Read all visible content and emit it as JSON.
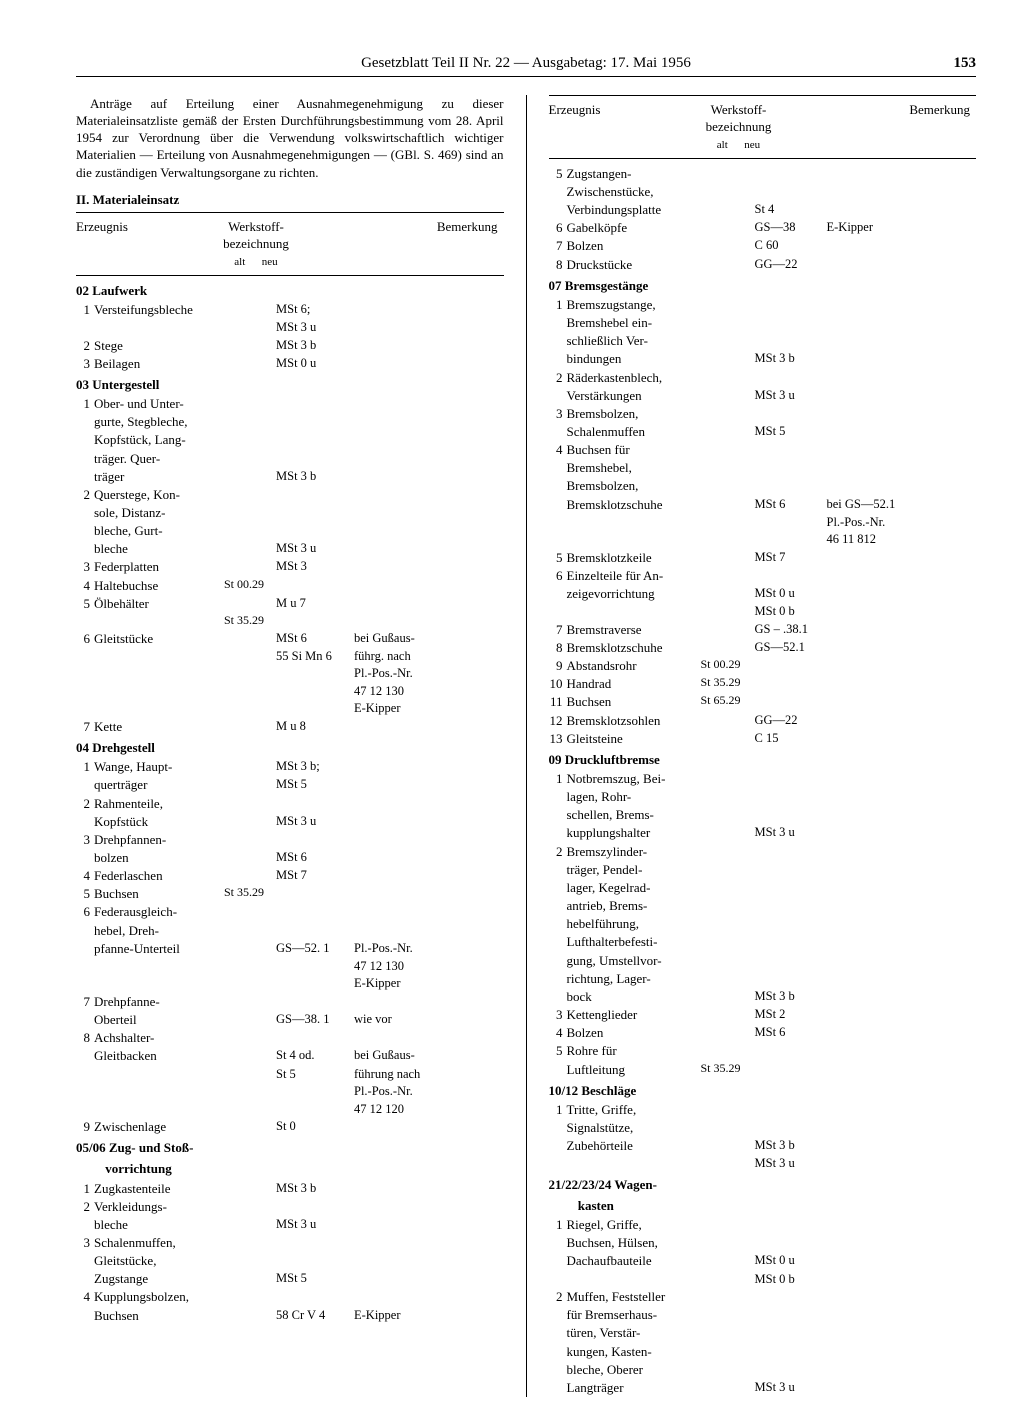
{
  "header": {
    "title": "Gesetzblatt Teil II Nr. 22 — Ausgabetag: 17. Mai 1956",
    "page": "153"
  },
  "intro": "Anträge auf Erteilung einer Ausnahmegenehmigung zu dieser Materialeinsatzliste gemäß der Ersten Durchführungsbestimmung vom 28. April 1954 zur Verordnung über die Verwendung volkswirtschaftlich wichtiger Materialien — Erteilung von Ausnahmegenehmigungen — (GBl. S. 469) sind an die zuständigen Verwaltungsorgane zu richten.",
  "section2": "II. Materialeinsatz",
  "table_header": {
    "c1": "Erzeugnis",
    "c2_top": "Werkstoff-",
    "c2_bot": "bezeichnung",
    "c2_sub": "alt      neu",
    "c3": "Bemerkung"
  },
  "left": [
    {
      "type": "grp",
      "text": "02  Laufwerk"
    },
    {
      "n": "1",
      "p": "Versteifungsbleche",
      "neu": "MSt 6;"
    },
    {
      "p": "",
      "neu": "MSt 3 u"
    },
    {
      "n": "2",
      "p": "Stege",
      "neu": "MSt 3 b"
    },
    {
      "n": "3",
      "p": "Beilagen",
      "neu": "MSt 0 u"
    },
    {
      "type": "grp",
      "text": "03  Untergestell"
    },
    {
      "n": "1",
      "p": "Ober- und Unter-"
    },
    {
      "p": "gurte, Stegbleche,"
    },
    {
      "p": "Kopfstück, Lang-"
    },
    {
      "p": "träger. Quer-"
    },
    {
      "p": "träger",
      "neu": "MSt 3 b"
    },
    {
      "n": "2",
      "p": "Querstege, Kon-"
    },
    {
      "p": "sole, Distanz-"
    },
    {
      "p": "bleche, Gurt-"
    },
    {
      "p": "bleche",
      "neu": "MSt 3 u"
    },
    {
      "n": "3",
      "p": "Federplatten",
      "neu": "MSt 3"
    },
    {
      "n": "4",
      "p": "Haltebuchse",
      "alt": "St 00.29"
    },
    {
      "n": "5",
      "p": "Ölbehälter",
      "neu": "M u 7"
    },
    {
      "p": "",
      "alt": "St 35.29"
    },
    {
      "n": "6",
      "p": "Gleitstücke",
      "neu": "MSt 6",
      "rem": "bei Gußaus-"
    },
    {
      "p": "",
      "neu": "55 Si Mn 6",
      "rem": "führg. nach"
    },
    {
      "p": "",
      "rem": "Pl.-Pos.-Nr."
    },
    {
      "p": "",
      "rem": "47 12 130"
    },
    {
      "p": "",
      "rem": "E-Kipper"
    },
    {
      "n": "7",
      "p": "Kette",
      "neu": "M u 8"
    },
    {
      "type": "grp",
      "text": "04  Drehgestell"
    },
    {
      "n": "1",
      "p": "Wange, Haupt-",
      "neu": "MSt 3 b;"
    },
    {
      "p": "querträger",
      "neu": "MSt 5"
    },
    {
      "n": "2",
      "p": "Rahmenteile,"
    },
    {
      "p": "Kopfstück",
      "neu": "MSt 3 u"
    },
    {
      "n": "3",
      "p": "Drehpfannen-"
    },
    {
      "p": "bolzen",
      "neu": "MSt 6"
    },
    {
      "n": "4",
      "p": "Federlaschen",
      "neu": "MSt 7"
    },
    {
      "n": "5",
      "p": "Buchsen",
      "alt": "St 35.29"
    },
    {
      "n": "6",
      "p": "Federausgleich-"
    },
    {
      "p": "hebel, Dreh-"
    },
    {
      "p": "pfanne-Unterteil",
      "neu": "GS—52. 1",
      "rem": "Pl.-Pos.-Nr."
    },
    {
      "p": "",
      "rem": "47 12 130"
    },
    {
      "p": "",
      "rem": "E-Kipper"
    },
    {
      "n": "7",
      "p": "Drehpfanne-"
    },
    {
      "p": "Oberteil",
      "neu": "GS—38. 1",
      "rem": "wie  vor"
    },
    {
      "n": "8",
      "p": "Achshalter-"
    },
    {
      "p": "Gleitbacken",
      "neu": "St 4 od.",
      "rem": "bei Gußaus-"
    },
    {
      "p": "",
      "neu": "St 5",
      "rem": "führung nach"
    },
    {
      "p": "",
      "rem": "Pl.-Pos.-Nr."
    },
    {
      "p": "",
      "rem": "47 12 120"
    },
    {
      "n": "9",
      "p": "Zwischenlage",
      "neu": "St 0"
    },
    {
      "type": "grp",
      "text": "05/06  Zug- und Stoß-"
    },
    {
      "type": "grp",
      "text": "         vorrichtung"
    },
    {
      "n": "1",
      "p": "Zugkastenteile",
      "neu": "MSt 3 b"
    },
    {
      "n": "2",
      "p": "Verkleidungs-"
    },
    {
      "p": "bleche",
      "neu": "MSt 3 u"
    },
    {
      "n": "3",
      "p": "Schalenmuffen,"
    },
    {
      "p": "Gleitstücke,"
    },
    {
      "p": "Zugstange",
      "neu": "MSt 5"
    },
    {
      "n": "4",
      "p": "Kupplungsbolzen,"
    },
    {
      "p": "Buchsen",
      "neu": "58 Cr V 4",
      "rem": "E-Kipper"
    }
  ],
  "right": [
    {
      "n": "5",
      "p": "Zugstangen-"
    },
    {
      "p": "Zwischenstücke,"
    },
    {
      "p": "Verbindungsplatte",
      "neu": "St 4"
    },
    {
      "n": "6",
      "p": "Gabelköpfe",
      "neu": "GS—38",
      "rem": "E-Kipper"
    },
    {
      "n": "7",
      "p": "Bolzen",
      "neu": "C 60"
    },
    {
      "n": "8",
      "p": "Druckstücke",
      "neu": "GG—22"
    },
    {
      "type": "grp",
      "text": "07  Bremsgestänge"
    },
    {
      "n": "1",
      "p": "Bremszugstange,"
    },
    {
      "p": "Bremshebel ein-"
    },
    {
      "p": "schließlich Ver-"
    },
    {
      "p": "bindungen",
      "neu": "MSt 3 b"
    },
    {
      "n": "2",
      "p": "Räderkastenblech,"
    },
    {
      "p": "Verstärkungen",
      "neu": "MSt 3 u"
    },
    {
      "n": "3",
      "p": "Bremsbolzen,"
    },
    {
      "p": "Schalenmuffen",
      "neu": "MSt 5"
    },
    {
      "n": "4",
      "p": "Buchsen für"
    },
    {
      "p": "Bremshebel,"
    },
    {
      "p": "Bremsbolzen,"
    },
    {
      "p": "Bremsklotzschuhe",
      "neu": "MSt 6",
      "rem": "bei GS—52.1"
    },
    {
      "p": "",
      "rem": "Pl.-Pos.-Nr."
    },
    {
      "p": "",
      "rem": "46 11 812"
    },
    {
      "n": "5",
      "p": "Bremsklotzkeile",
      "neu": "MSt 7"
    },
    {
      "n": "6",
      "p": "Einzelteile für An-"
    },
    {
      "p": "zeigevorrichtung",
      "neu": "MSt 0 u"
    },
    {
      "p": "",
      "neu": "MSt 0 b"
    },
    {
      "n": "7",
      "p": "Bremstraverse",
      "neu": "GS – .38.1"
    },
    {
      "n": "8",
      "p": "Bremsklotzschuhe",
      "neu": "GS—52.1"
    },
    {
      "n": "9",
      "p": "Abstandsrohr",
      "alt": "St 00.29"
    },
    {
      "n": "10",
      "p": "Handrad",
      "alt": "St 35.29"
    },
    {
      "n": "11",
      "p": "Buchsen",
      "alt": "St 65.29"
    },
    {
      "n": "12",
      "p": "Bremsklotzsohlen",
      "neu": "GG—22"
    },
    {
      "n": "13",
      "p": "Gleitsteine",
      "neu": "C 15"
    },
    {
      "type": "grp",
      "text": "09  Druckluftbremse"
    },
    {
      "n": "1",
      "p": "Notbremszug, Bei-"
    },
    {
      "p": "lagen, Rohr-"
    },
    {
      "p": "schellen, Brems-"
    },
    {
      "p": "kupplungshalter",
      "neu": "MSt 3 u"
    },
    {
      "n": "2",
      "p": "Bremszylinder-"
    },
    {
      "p": "träger, Pendel-"
    },
    {
      "p": "lager, Kegelrad-"
    },
    {
      "p": "antrieb, Brems-"
    },
    {
      "p": "hebelführung,"
    },
    {
      "p": "Lufthalterbefesti-"
    },
    {
      "p": "gung, Umstellvor-"
    },
    {
      "p": "richtung, Lager-"
    },
    {
      "p": "bock",
      "neu": "MSt 3 b"
    },
    {
      "n": "3",
      "p": "Kettenglieder",
      "neu": "MSt 2"
    },
    {
      "n": "4",
      "p": "Bolzen",
      "neu": "MSt 6"
    },
    {
      "n": "5",
      "p": "Rohre für"
    },
    {
      "p": "Luftleitung",
      "alt": "St 35.29"
    },
    {
      "type": "grp",
      "text": "10/12  Beschläge"
    },
    {
      "n": "1",
      "p": "Tritte, Griffe,"
    },
    {
      "p": "Signalstütze,"
    },
    {
      "p": "Zubehörteile",
      "neu": "MSt 3 b"
    },
    {
      "p": "",
      "neu": "MSt 3 u"
    },
    {
      "type": "grp",
      "text": "21/22/23/24  Wagen-"
    },
    {
      "type": "grp",
      "text": "         kasten"
    },
    {
      "n": "1",
      "p": "Riegel, Griffe,"
    },
    {
      "p": "Buchsen, Hülsen,"
    },
    {
      "p": "Dachaufbauteile",
      "neu": "MSt 0 u"
    },
    {
      "p": "",
      "neu": "MSt 0 b"
    },
    {
      "n": "2",
      "p": "Muffen, Feststeller"
    },
    {
      "p": "für Bremserhaus-"
    },
    {
      "p": "türen, Verstär-"
    },
    {
      "p": "kungen, Kasten-"
    },
    {
      "p": "bleche, Oberer"
    },
    {
      "p": "Langträger",
      "neu": "MSt 3 u"
    }
  ]
}
